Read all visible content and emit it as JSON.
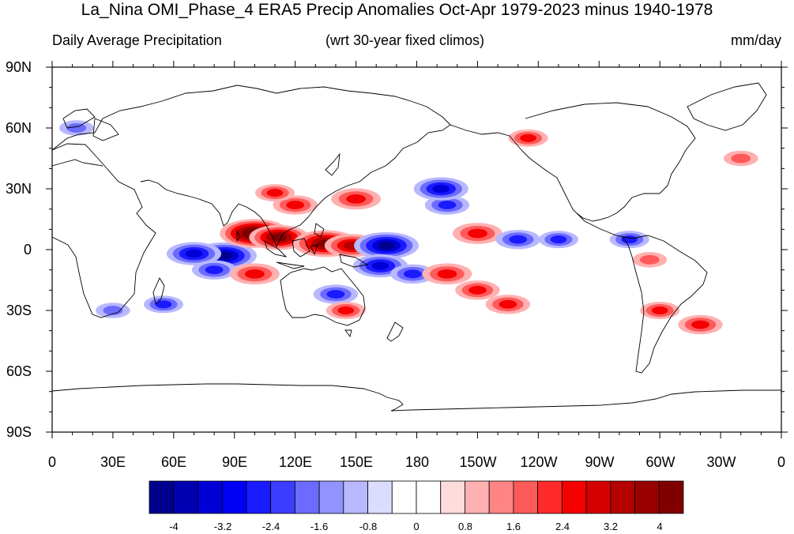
{
  "title": "La_Nina OMI_Phase_4 ERA5 Precip Anomalies Oct-Apr 1979-2023 minus 1940-1978",
  "subtitle_left": "Daily Average Precipitation",
  "subtitle_center": "(wrt 30-year fixed climos)",
  "subtitle_right": "mm/day",
  "lat_labels": [
    "90N",
    "60N",
    "30N",
    "0",
    "30S",
    "60S",
    "90S"
  ],
  "lon_labels": [
    "0",
    "30E",
    "60E",
    "90E",
    "120E",
    "150E",
    "180",
    "150W",
    "120W",
    "90W",
    "60W",
    "30W",
    "0"
  ],
  "colorbar": {
    "colors": [
      "#00008f",
      "#0000b3",
      "#0000d6",
      "#0000f5",
      "#1a1aff",
      "#3d3dff",
      "#6b6bff",
      "#9393ff",
      "#b8b8ff",
      "#dcdcff",
      "#ffffff",
      "#ffffff",
      "#ffdcdc",
      "#ffb0b0",
      "#ff8585",
      "#ff5a5a",
      "#ff2a2a",
      "#f50000",
      "#d60000",
      "#b30000",
      "#990000",
      "#800000"
    ],
    "tick_labels": [
      "-4",
      "-3.2",
      "-2.4",
      "-1.6",
      "-0.8",
      "0",
      "0.8",
      "1.6",
      "2.4",
      "3.2",
      "4"
    ]
  },
  "chart_data": {
    "type": "heatmap",
    "title": "La_Nina OMI_Phase_4 ERA5 Precip Anomalies Oct-Apr 1979-2023 minus 1940-1978",
    "units": "mm/day",
    "projection": "cylindrical equidistant, centered 180",
    "lon_range": [
      0,
      360
    ],
    "lat_range": [
      -90,
      90
    ],
    "contour_range": [
      -4,
      4
    ],
    "anomalies": [
      {
        "lon": 85,
        "lat": -3,
        "value": -4.0
      },
      {
        "lon": 70,
        "lat": -2,
        "value": -3.2
      },
      {
        "lon": 80,
        "lat": -10,
        "value": -2.4
      },
      {
        "lon": 100,
        "lat": 8,
        "value": 4.4
      },
      {
        "lon": 112,
        "lat": 6,
        "value": 3.6
      },
      {
        "lon": 135,
        "lat": 3,
        "value": 4.0
      },
      {
        "lon": 148,
        "lat": 2,
        "value": 3.2
      },
      {
        "lon": 165,
        "lat": 2,
        "value": -4.0
      },
      {
        "lon": 162,
        "lat": -8,
        "value": -3.2
      },
      {
        "lon": 178,
        "lat": -12,
        "value": -2.4
      },
      {
        "lon": 195,
        "lat": 22,
        "value": -2.4
      },
      {
        "lon": 192,
        "lat": 30,
        "value": -3.2
      },
      {
        "lon": 150,
        "lat": 25,
        "value": 2.8
      },
      {
        "lon": 120,
        "lat": 22,
        "value": 2.4
      },
      {
        "lon": 110,
        "lat": 28,
        "value": 2.0
      },
      {
        "lon": 210,
        "lat": 8,
        "value": 2.8
      },
      {
        "lon": 230,
        "lat": 5,
        "value": -2.4
      },
      {
        "lon": 250,
        "lat": 5,
        "value": -2.0
      },
      {
        "lon": 195,
        "lat": -12,
        "value": 2.8
      },
      {
        "lon": 210,
        "lat": -20,
        "value": 2.4
      },
      {
        "lon": 225,
        "lat": -27,
        "value": 2.4
      },
      {
        "lon": 235,
        "lat": 55,
        "value": 2.0
      },
      {
        "lon": 140,
        "lat": -22,
        "value": -2.4
      },
      {
        "lon": 145,
        "lat": -30,
        "value": 2.0
      },
      {
        "lon": 100,
        "lat": -12,
        "value": 2.8
      },
      {
        "lon": 300,
        "lat": -30,
        "value": 2.0
      },
      {
        "lon": 320,
        "lat": -37,
        "value": 2.4
      },
      {
        "lon": 285,
        "lat": 5,
        "value": -2.0
      },
      {
        "lon": 295,
        "lat": -5,
        "value": 1.6
      },
      {
        "lon": 30,
        "lat": -30,
        "value": -1.6
      },
      {
        "lon": 55,
        "lat": -27,
        "value": -2.0
      },
      {
        "lon": 340,
        "lat": 45,
        "value": 1.6
      },
      {
        "lon": 12,
        "lat": 60,
        "value": -1.6
      }
    ]
  }
}
